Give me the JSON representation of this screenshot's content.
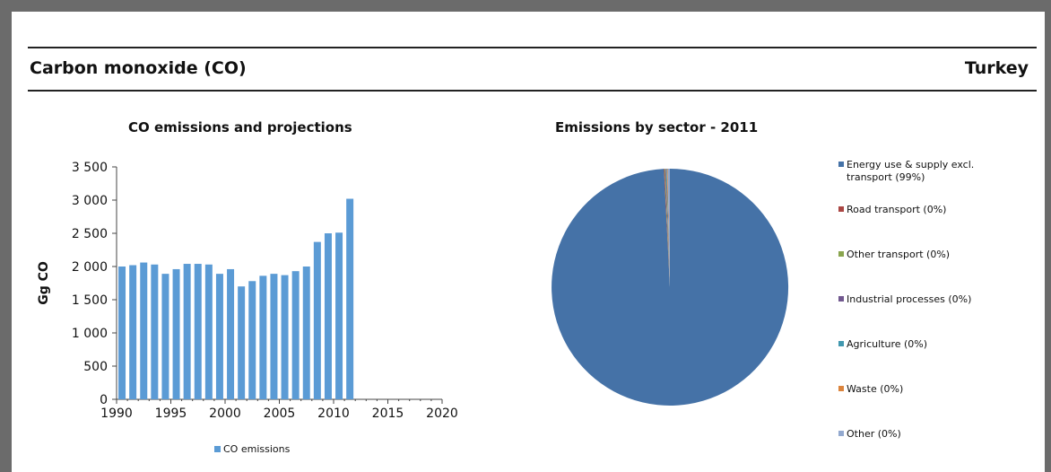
{
  "header": {
    "pollutant": "Carbon monoxide (CO)",
    "country": "Turkey"
  },
  "chart_data": [
    {
      "type": "bar",
      "title": "CO emissions and projections",
      "xlabel": "",
      "ylabel": "Gg CO",
      "ylim": [
        0,
        3500
      ],
      "yticks": [
        "0",
        "500",
        "1 000",
        "1 500",
        "2 000",
        "2 500",
        "3 000",
        "3 500"
      ],
      "xlim": [
        1990,
        2020
      ],
      "xticks": [
        "1990",
        "1995",
        "2000",
        "2005",
        "2010",
        "2015",
        "2020"
      ],
      "x": [
        1990,
        1991,
        1992,
        1993,
        1994,
        1995,
        1996,
        1997,
        1998,
        1999,
        2000,
        2001,
        2002,
        2003,
        2004,
        2005,
        2006,
        2007,
        2008,
        2009,
        2010,
        2011
      ],
      "series": [
        {
          "name": "CO emissions",
          "color": "#5b9bd5",
          "values": [
            2000,
            2020,
            2060,
            2030,
            1890,
            1960,
            2040,
            2040,
            2030,
            1890,
            1960,
            1700,
            1780,
            1860,
            1890,
            1870,
            1930,
            2000,
            2370,
            2500,
            2510,
            3020
          ]
        }
      ],
      "legend": "bottom"
    },
    {
      "type": "pie",
      "title": "Emissions by sector - 2011",
      "categories": [
        "Energy use & supply excl. transport (99%)",
        "Road transport (0%)",
        "Other transport (0%)",
        "Industrial processes (0%)",
        "Agriculture  (0%)",
        "Waste (0%)",
        "Other (0%)"
      ],
      "values": [
        99.2,
        0.1,
        0.1,
        0.1,
        0.1,
        0.1,
        0.3
      ],
      "colors": [
        "#4572a7",
        "#aa4643",
        "#89a54e",
        "#71588f",
        "#4198af",
        "#db843d",
        "#93a9cf"
      ],
      "legend": "right"
    }
  ]
}
